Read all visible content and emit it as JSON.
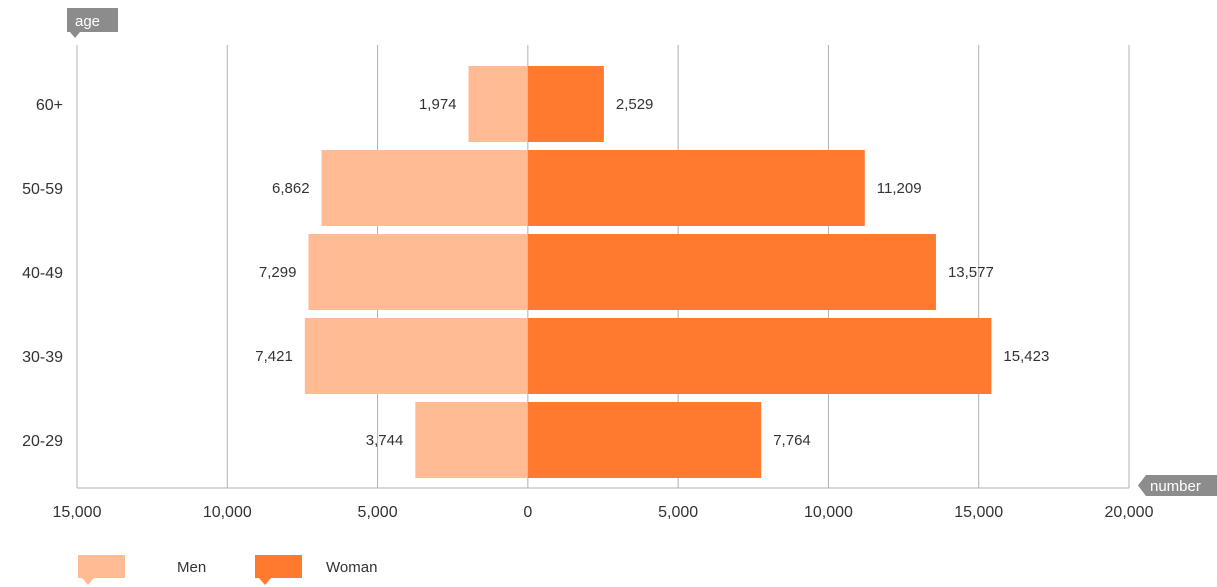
{
  "chart_data": {
    "type": "bar",
    "orientation": "horizontal-diverging",
    "categories": [
      "60+",
      "50-59",
      "40-49",
      "30-39",
      "20-29"
    ],
    "series": [
      {
        "name": "Men",
        "values": [
          1974,
          6862,
          7299,
          7421,
          3744
        ],
        "labels": [
          "1,974",
          "6,862",
          "7,299",
          "7,421",
          "3,744"
        ],
        "color": "#ffbb93",
        "direction": "left"
      },
      {
        "name": "Woman",
        "values": [
          2529,
          11209,
          13577,
          15423,
          7764
        ],
        "labels": [
          "2,529",
          "11,209",
          "13,577",
          "15,423",
          "7,764"
        ],
        "color": "#ff7a2e",
        "direction": "right"
      }
    ],
    "xlabel": "number",
    "ylabel": "age",
    "x_ticks": [
      -15000,
      -10000,
      -5000,
      0,
      5000,
      10000,
      15000,
      20000
    ],
    "x_tick_labels": [
      "15,000",
      "10,000",
      "5,000",
      "0",
      "5,000",
      "10,000",
      "15,000",
      "20,000"
    ],
    "xlim": [
      -15000,
      20000
    ],
    "grid": true,
    "legend_position": "bottom-left"
  },
  "colors": {
    "axis_tag": "#8c8c8c",
    "grid": "#b0b0b0"
  }
}
